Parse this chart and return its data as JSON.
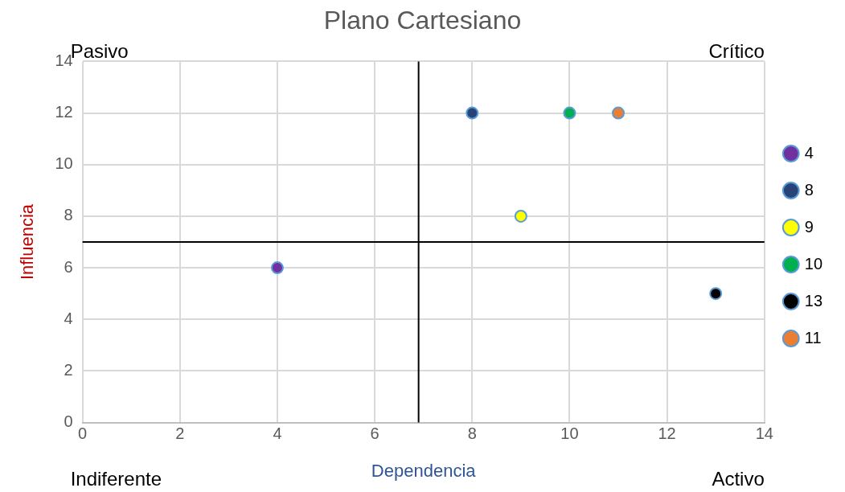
{
  "chart_data": {
    "type": "scatter",
    "title": "Plano Cartesiano",
    "xlabel": "Dependencia",
    "ylabel": "Influencia",
    "annotations": [
      "Pasivo",
      "Crítico",
      "Indiferente",
      "Activo"
    ],
    "series": [
      {
        "name": "4",
        "color": "#7030a0",
        "x": [
          4
        ],
        "values": [
          6
        ]
      },
      {
        "name": "8",
        "color": "#264478",
        "x": [
          8
        ],
        "values": [
          12
        ]
      },
      {
        "name": "9",
        "color": "#ffff00",
        "x": [
          9
        ],
        "values": [
          8
        ]
      },
      {
        "name": "10",
        "color": "#00b050",
        "x": [
          10
        ],
        "values": [
          12
        ]
      },
      {
        "name": "13",
        "color": "#000000",
        "x": [
          13
        ],
        "values": [
          5
        ]
      },
      {
        "name": "11",
        "color": "#ed7d31",
        "x": [
          11
        ],
        "values": [
          12
        ]
      }
    ],
    "ref_lines": [
      {
        "axis": "x",
        "value": 6.9,
        "color": "#000000"
      },
      {
        "axis": "y",
        "value": 7,
        "color": "#000000"
      }
    ],
    "xlim": [
      0,
      14
    ],
    "xticks": [
      0,
      2,
      4,
      6,
      8,
      10,
      12,
      14
    ],
    "ylim": [
      0,
      14
    ],
    "yticks": [
      0,
      2,
      4,
      6,
      8,
      10,
      12,
      14
    ],
    "grid": true,
    "legend": "right",
    "marker": "circle"
  }
}
